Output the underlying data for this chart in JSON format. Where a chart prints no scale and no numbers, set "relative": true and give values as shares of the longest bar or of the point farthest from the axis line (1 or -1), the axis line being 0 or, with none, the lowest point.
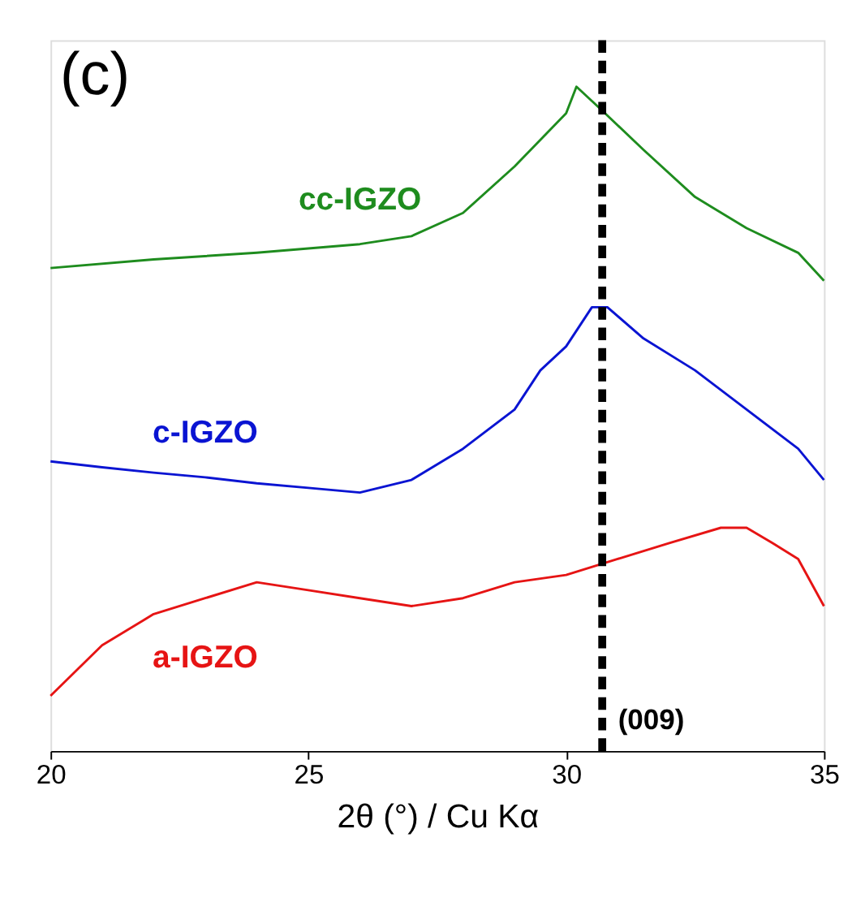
{
  "chart_data": {
    "type": "line",
    "relative": true,
    "xlabel": "2θ (°) / Cu Kα",
    "xlim": [
      20,
      35
    ],
    "xticks": [
      20,
      25,
      30,
      35
    ],
    "grid": false,
    "legend": false,
    "annotations": [
      "(c)",
      "(009)"
    ],
    "ref_lines": [
      {
        "axis": "x",
        "value": 30.7,
        "color": "#000000",
        "line_style": "dashed"
      }
    ],
    "series": [
      {
        "name": "cc-IGZO",
        "color": "#1e8c1e",
        "x": [
          20,
          22,
          24,
          26,
          27,
          28,
          29,
          30,
          30.2,
          30.7,
          31.5,
          32.5,
          33.5,
          34.5,
          35
        ],
        "values": [
          0.727,
          0.74,
          0.75,
          0.763,
          0.775,
          0.81,
          0.88,
          0.96,
          1,
          0.964,
          0.905,
          0.834,
          0.787,
          0.75,
          0.708
        ]
      },
      {
        "name": "c-IGZO",
        "color": "#0a14d2",
        "x": [
          20,
          21,
          22,
          23,
          24,
          25,
          26,
          27,
          28,
          29,
          29.5,
          30,
          30.5,
          30.8,
          31.5,
          32.5,
          33.5,
          34.5,
          35
        ],
        "values": [
          0.436,
          0.427,
          0.419,
          0.412,
          0.403,
          0.396,
          0.389,
          0.408,
          0.455,
          0.514,
          0.573,
          0.609,
          0.668,
          0.668,
          0.621,
          0.573,
          0.514,
          0.455,
          0.408
        ]
      },
      {
        "name": "a-IGZO",
        "color": "#e61414",
        "x": [
          20,
          21,
          22,
          23,
          24,
          25,
          26,
          27,
          28,
          29,
          30,
          31,
          32,
          33,
          33.5,
          34,
          34.5,
          35
        ],
        "values": [
          0.083,
          0.159,
          0.206,
          0.23,
          0.254,
          0.242,
          0.23,
          0.218,
          0.23,
          0.254,
          0.265,
          0.289,
          0.313,
          0.336,
          0.336,
          0.313,
          0.289,
          0.218
        ]
      }
    ]
  }
}
